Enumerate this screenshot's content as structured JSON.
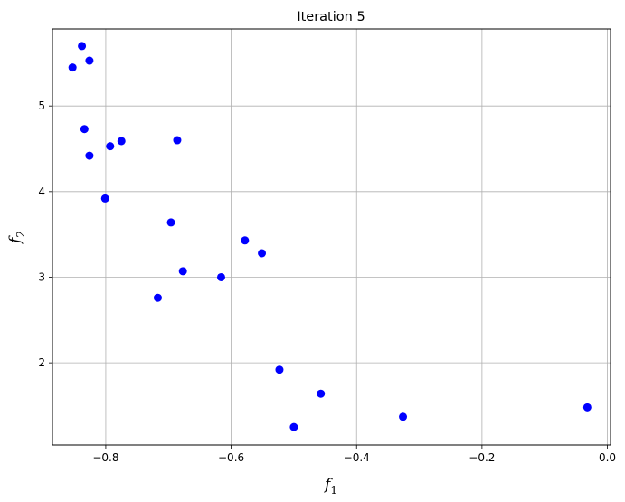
{
  "chart_data": {
    "type": "scatter",
    "title": "Iteration 5",
    "xlabel": {
      "main": "f",
      "sub": "1"
    },
    "ylabel": {
      "main": "f",
      "sub": "2"
    },
    "xlim": [
      -0.885,
      0.005
    ],
    "ylim": [
      1.04,
      5.9
    ],
    "grid": true,
    "marker_color": "#0000ff",
    "xticks": [
      {
        "value": -0.8,
        "label": "−0.8"
      },
      {
        "value": -0.6,
        "label": "−0.6"
      },
      {
        "value": -0.4,
        "label": "−0.4"
      },
      {
        "value": -0.2,
        "label": "−0.2"
      },
      {
        "value": 0.0,
        "label": "0.0"
      }
    ],
    "yticks": [
      {
        "value": 2,
        "label": "2"
      },
      {
        "value": 3,
        "label": "3"
      },
      {
        "value": 4,
        "label": "4"
      },
      {
        "value": 5,
        "label": "5"
      }
    ],
    "points": [
      {
        "x": -0.838,
        "y": 5.7
      },
      {
        "x": -0.826,
        "y": 5.53
      },
      {
        "x": -0.853,
        "y": 5.45
      },
      {
        "x": -0.834,
        "y": 4.73
      },
      {
        "x": -0.826,
        "y": 4.42
      },
      {
        "x": -0.793,
        "y": 4.53
      },
      {
        "x": -0.775,
        "y": 4.59
      },
      {
        "x": -0.686,
        "y": 4.6
      },
      {
        "x": -0.801,
        "y": 3.92
      },
      {
        "x": -0.696,
        "y": 3.64
      },
      {
        "x": -0.578,
        "y": 3.43
      },
      {
        "x": -0.551,
        "y": 3.28
      },
      {
        "x": -0.677,
        "y": 3.07
      },
      {
        "x": -0.616,
        "y": 3.0
      },
      {
        "x": -0.717,
        "y": 2.76
      },
      {
        "x": -0.523,
        "y": 1.92
      },
      {
        "x": -0.457,
        "y": 1.64
      },
      {
        "x": -0.5,
        "y": 1.25
      },
      {
        "x": -0.326,
        "y": 1.37
      },
      {
        "x": -0.032,
        "y": 1.48
      }
    ]
  }
}
